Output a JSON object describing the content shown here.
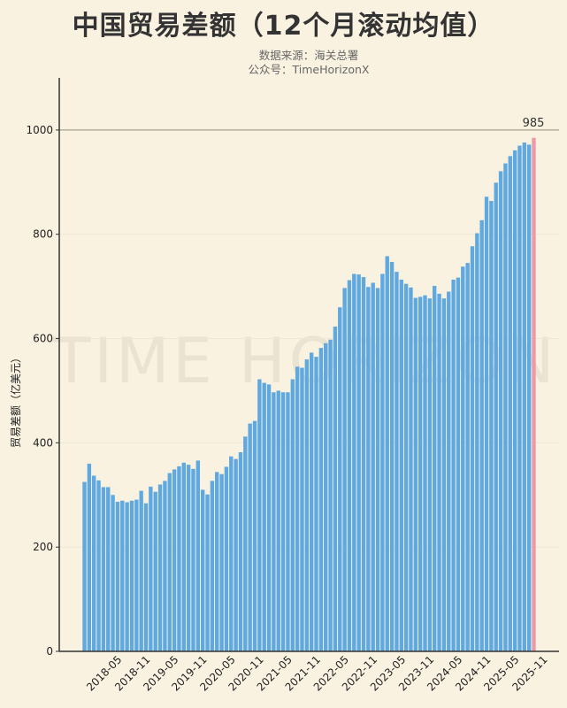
{
  "chart_data": {
    "type": "bar",
    "title": "中国贸易差额（12个月滚动均值）",
    "subtitle": [
      "数据来源：海关总署",
      "公众号：TimeHorizonX"
    ],
    "watermark": "TIME HORIZON",
    "xlabel": "",
    "ylabel": "贸易差额（亿美元）",
    "ylim": [
      0,
      1100
    ],
    "yticks": [
      0,
      200,
      400,
      600,
      800,
      1000
    ],
    "xtick_labels": [
      "2018-05",
      "2018-11",
      "2019-05",
      "2019-11",
      "2020-05",
      "2020-11",
      "2021-05",
      "2021-11",
      "2022-05",
      "2022-11",
      "2023-05",
      "2023-11",
      "2024-05",
      "2024-11",
      "2025-05",
      "2025-11"
    ],
    "reference_line": 1000,
    "last_value_label": "985",
    "grid": true,
    "colors": {
      "bar": "#5fa8e0",
      "highlight": "#ec9aaa",
      "background": "#faf2e1"
    },
    "categories": [
      "2017-09",
      "2017-10",
      "2017-11",
      "2017-12",
      "2018-01",
      "2018-02",
      "2018-03",
      "2018-04",
      "2018-05",
      "2018-06",
      "2018-07",
      "2018-08",
      "2018-09",
      "2018-10",
      "2018-11",
      "2018-12",
      "2019-01",
      "2019-02",
      "2019-03",
      "2019-04",
      "2019-05",
      "2019-06",
      "2019-07",
      "2019-08",
      "2019-09",
      "2019-10",
      "2019-11",
      "2019-12",
      "2020-01",
      "2020-02",
      "2020-03",
      "2020-04",
      "2020-05",
      "2020-06",
      "2020-07",
      "2020-08",
      "2020-09",
      "2020-10",
      "2020-11",
      "2020-12",
      "2021-01",
      "2021-02",
      "2021-03",
      "2021-04",
      "2021-05",
      "2021-06",
      "2021-07",
      "2021-08",
      "2021-09",
      "2021-10",
      "2021-11",
      "2021-12",
      "2022-01",
      "2022-02",
      "2022-03",
      "2022-04",
      "2022-05",
      "2022-06",
      "2022-07",
      "2022-08",
      "2022-09",
      "2022-10",
      "2022-11",
      "2022-12",
      "2023-01",
      "2023-02",
      "2023-03",
      "2023-04",
      "2023-05",
      "2023-06",
      "2023-07",
      "2023-08",
      "2023-09",
      "2023-10",
      "2023-11",
      "2023-12",
      "2024-01",
      "2024-02",
      "2024-03",
      "2024-04",
      "2024-05",
      "2024-06",
      "2024-07",
      "2024-08",
      "2024-09",
      "2024-10",
      "2024-11",
      "2024-12",
      "2025-01",
      "2025-02",
      "2025-03",
      "2025-04",
      "2025-05",
      "2025-06",
      "2025-07",
      "2025-08"
    ],
    "values": [
      325,
      360,
      337,
      328,
      315,
      315,
      300,
      287,
      289,
      286,
      289,
      291,
      308,
      284,
      316,
      306,
      320,
      327,
      342,
      349,
      355,
      362,
      358,
      350,
      366,
      310,
      301,
      327,
      344,
      340,
      354,
      374,
      369,
      382,
      412,
      437,
      442,
      522,
      515,
      512,
      497,
      500,
      497,
      497,
      522,
      546,
      544,
      560,
      573,
      565,
      582,
      591,
      598,
      623,
      660,
      697,
      712,
      724,
      723,
      718,
      699,
      707,
      697,
      724,
      758,
      747,
      728,
      713,
      705,
      698,
      678,
      680,
      683,
      677,
      701,
      686,
      677,
      690,
      713,
      717,
      738,
      745,
      777,
      802,
      827,
      872,
      864,
      899,
      921,
      936,
      950,
      961,
      970,
      976,
      972,
      985
    ]
  }
}
